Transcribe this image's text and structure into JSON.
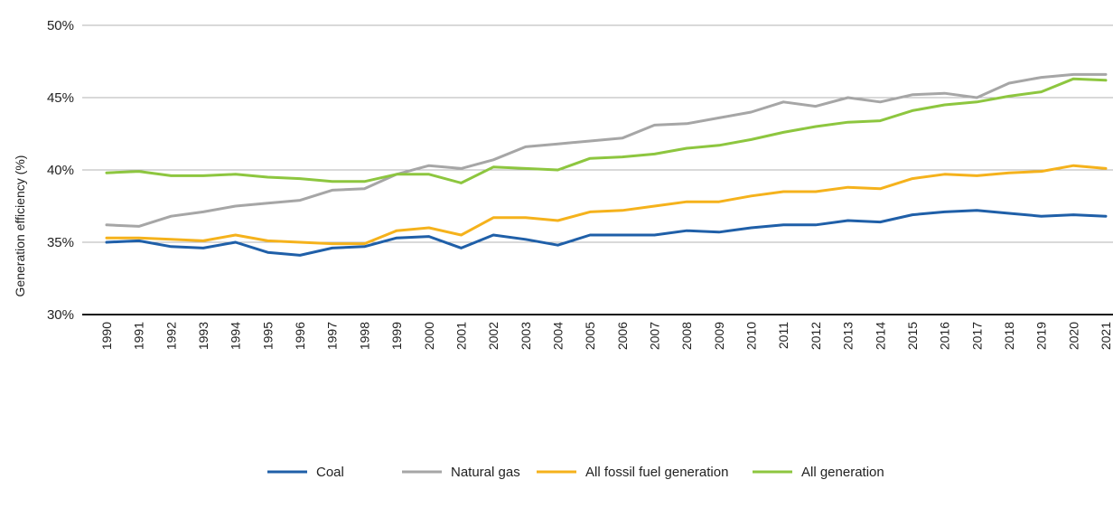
{
  "chart_data": {
    "type": "line",
    "title": "",
    "xlabel": "",
    "ylabel": "Generation efficiency (%)",
    "x": [
      "1990",
      "1991",
      "1992",
      "1993",
      "1994",
      "1995",
      "1996",
      "1997",
      "1998",
      "1999",
      "2000",
      "2001",
      "2002",
      "2003",
      "2004",
      "2005",
      "2006",
      "2007",
      "2008",
      "2009",
      "2010",
      "2011",
      "2012",
      "2013",
      "2014",
      "2015",
      "2016",
      "2017",
      "2018",
      "2019",
      "2020",
      "2021"
    ],
    "yticks": [
      "30%",
      "35%",
      "40%",
      "45%",
      "50%"
    ],
    "ylim": [
      30,
      50
    ],
    "grid": true,
    "legend_position": "bottom",
    "series": [
      {
        "name": "Coal",
        "color": "#1f5fa8",
        "values": [
          35.0,
          35.1,
          34.7,
          34.6,
          35.0,
          34.3,
          34.1,
          34.6,
          34.7,
          35.3,
          35.4,
          34.6,
          35.5,
          35.2,
          34.8,
          35.5,
          35.5,
          35.5,
          35.8,
          35.7,
          36.0,
          36.2,
          36.2,
          36.5,
          36.4,
          36.9,
          37.1,
          37.2,
          37.0,
          36.8,
          36.9,
          36.8
        ]
      },
      {
        "name": "Natural gas",
        "color": "#a6a6a6",
        "values": [
          36.2,
          36.1,
          36.8,
          37.1,
          37.5,
          37.7,
          37.9,
          38.6,
          38.7,
          39.7,
          40.3,
          40.1,
          40.7,
          41.6,
          41.8,
          42.0,
          42.2,
          43.1,
          43.2,
          43.6,
          44.0,
          44.7,
          44.4,
          45.0,
          44.7,
          45.2,
          45.3,
          45.0,
          46.0,
          46.4,
          46.6,
          46.6
        ]
      },
      {
        "name": "All fossil fuel generation",
        "color": "#f5b21c",
        "values": [
          35.3,
          35.3,
          35.2,
          35.1,
          35.5,
          35.1,
          35.0,
          34.9,
          34.9,
          35.8,
          36.0,
          35.5,
          36.7,
          36.7,
          36.5,
          37.1,
          37.2,
          37.5,
          37.8,
          37.8,
          38.2,
          38.5,
          38.5,
          38.8,
          38.7,
          39.4,
          39.7,
          39.6,
          39.8,
          39.9,
          40.3,
          40.1
        ]
      },
      {
        "name": "All generation",
        "color": "#8dc63f",
        "values": [
          39.8,
          39.9,
          39.6,
          39.6,
          39.7,
          39.5,
          39.4,
          39.2,
          39.2,
          39.7,
          39.7,
          39.1,
          40.2,
          40.1,
          40.0,
          40.8,
          40.9,
          41.1,
          41.5,
          41.7,
          42.1,
          42.6,
          43.0,
          43.3,
          43.4,
          44.1,
          44.5,
          44.7,
          45.1,
          45.4,
          46.3,
          46.2
        ]
      }
    ]
  }
}
